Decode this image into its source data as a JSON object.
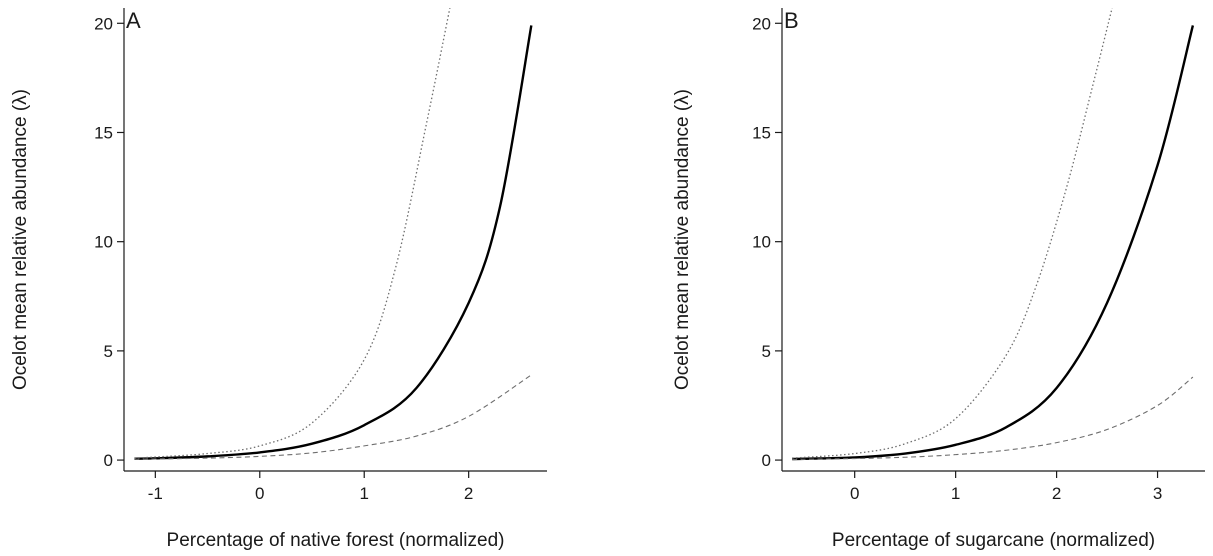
{
  "chart_data": [
    {
      "type": "line",
      "panel_label": "A",
      "xlabel": "Percentage of native forest (normalized)",
      "ylabel": "Ocelot mean relative abundance (λ)",
      "xlim": [
        -1.3,
        2.75
      ],
      "ylim": [
        -0.5,
        20.7
      ],
      "xticks": [
        -1,
        0,
        1,
        2
      ],
      "yticks": [
        0,
        5,
        10,
        15,
        20
      ],
      "grid": false,
      "series": [
        {
          "style": "solid",
          "color": "#000000",
          "x": [
            -1.2,
            -1.0,
            -0.5,
            0.0,
            0.5,
            1.0,
            1.5,
            2.0,
            2.3,
            2.6
          ],
          "y": [
            0.06,
            0.08,
            0.17,
            0.35,
            0.75,
            1.6,
            3.3,
            7.2,
            11.6,
            19.9
          ]
        },
        {
          "style": "dotted",
          "color": "#6e6e6e",
          "x": [
            -1.2,
            -1.0,
            -0.5,
            0.0,
            0.5,
            1.0,
            1.3,
            1.6,
            1.82
          ],
          "y": [
            0.1,
            0.14,
            0.3,
            0.65,
            1.7,
            4.6,
            8.8,
            15.5,
            20.7
          ]
        },
        {
          "style": "dashed",
          "color": "#6e6e6e",
          "x": [
            -1.2,
            -1.0,
            -0.5,
            0.0,
            0.5,
            1.0,
            1.5,
            2.0,
            2.6
          ],
          "y": [
            0.04,
            0.05,
            0.09,
            0.17,
            0.33,
            0.65,
            1.1,
            2.0,
            3.9
          ]
        }
      ]
    },
    {
      "type": "line",
      "panel_label": "B",
      "xlabel": "Percentage of sugarcane (normalized)",
      "ylabel": "Ocelot mean relative abundance (λ)",
      "xlim": [
        -0.72,
        3.47
      ],
      "ylim": [
        -0.5,
        20.7
      ],
      "xticks": [
        0,
        1,
        2,
        3
      ],
      "yticks": [
        0,
        5,
        10,
        15,
        20
      ],
      "grid": false,
      "series": [
        {
          "style": "solid",
          "color": "#000000",
          "x": [
            -0.62,
            0.0,
            0.5,
            1.0,
            1.5,
            2.0,
            2.5,
            3.0,
            3.35
          ],
          "y": [
            0.05,
            0.12,
            0.3,
            0.7,
            1.5,
            3.3,
            7.2,
            13.5,
            19.9
          ]
        },
        {
          "style": "dotted",
          "color": "#6e6e6e",
          "x": [
            -0.62,
            0.0,
            0.5,
            1.0,
            1.5,
            1.8,
            2.1,
            2.35,
            2.55
          ],
          "y": [
            0.09,
            0.3,
            0.75,
            1.9,
            4.8,
            8.0,
            12.5,
            17.0,
            20.7
          ]
        },
        {
          "style": "dashed",
          "color": "#6e6e6e",
          "x": [
            -0.62,
            0.0,
            0.5,
            1.0,
            1.5,
            2.0,
            2.5,
            3.0,
            3.35
          ],
          "y": [
            0.03,
            0.07,
            0.13,
            0.25,
            0.45,
            0.8,
            1.4,
            2.5,
            3.8
          ]
        }
      ]
    }
  ]
}
